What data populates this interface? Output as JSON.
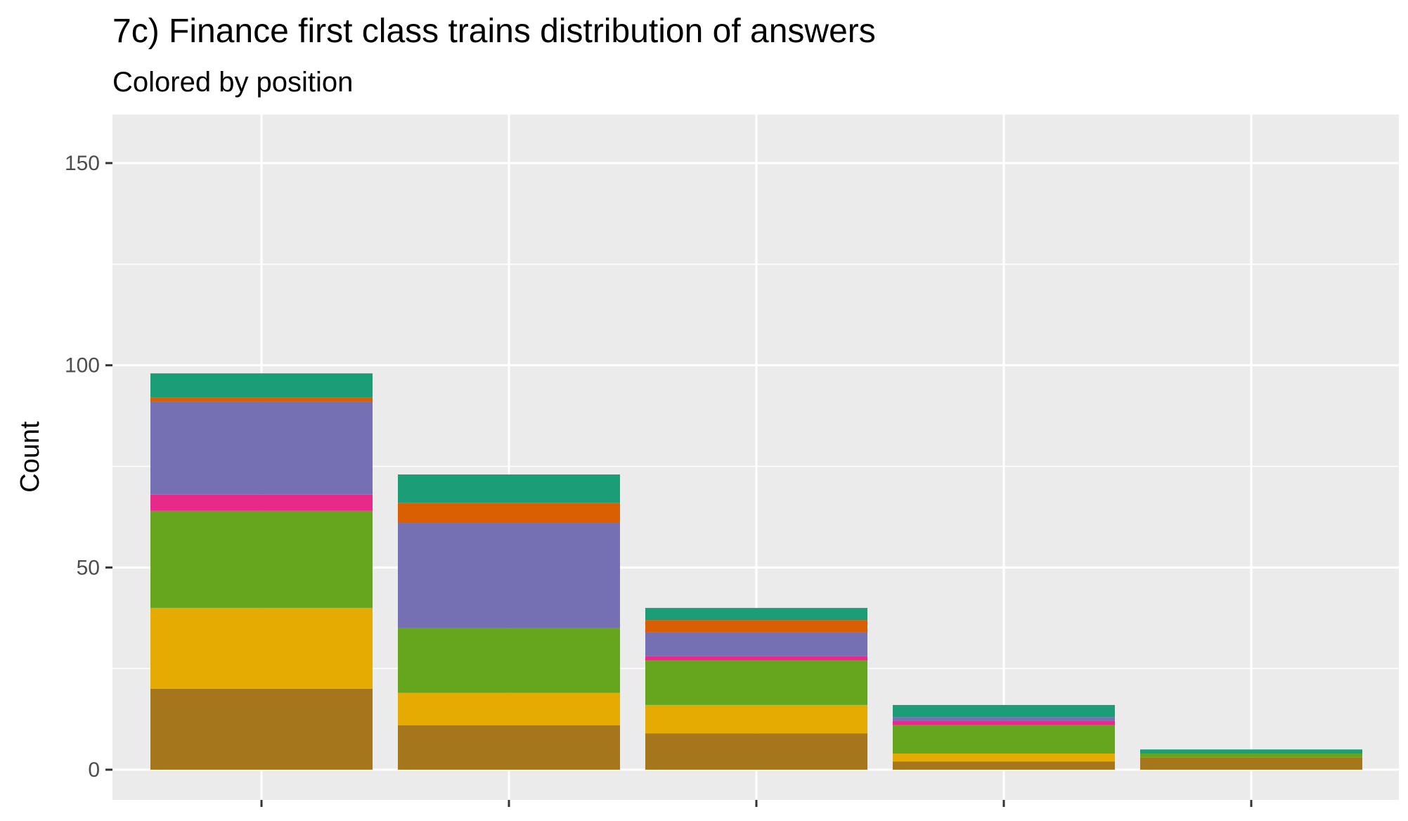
{
  "chart_data": {
    "type": "bar",
    "stacked": true,
    "title": "7c) Finance first class trains distribution of answers",
    "subtitle": "Colored by position",
    "xlabel": "",
    "ylabel": "Count",
    "ylim": [
      0,
      160
    ],
    "y_ticks": [
      0,
      50,
      100,
      150
    ],
    "grid": true,
    "legend": "none",
    "categories": [
      "",
      "",
      "",
      "",
      ""
    ],
    "series": [
      {
        "color": "#A6761D",
        "values": [
          20,
          11,
          9,
          2,
          3
        ]
      },
      {
        "color": "#E6AB02",
        "values": [
          20,
          8,
          7,
          2,
          0
        ]
      },
      {
        "color": "#66A61E",
        "values": [
          24,
          16,
          11,
          7,
          1
        ]
      },
      {
        "color": "#E7298A",
        "values": [
          4,
          0,
          1,
          1,
          0
        ]
      },
      {
        "color": "#7570B3",
        "values": [
          23,
          26,
          6,
          1,
          0
        ]
      },
      {
        "color": "#D95F02",
        "values": [
          1,
          5,
          3,
          0,
          0
        ]
      },
      {
        "color": "#1B9E77",
        "values": [
          6,
          7,
          3,
          3,
          1
        ]
      }
    ]
  }
}
